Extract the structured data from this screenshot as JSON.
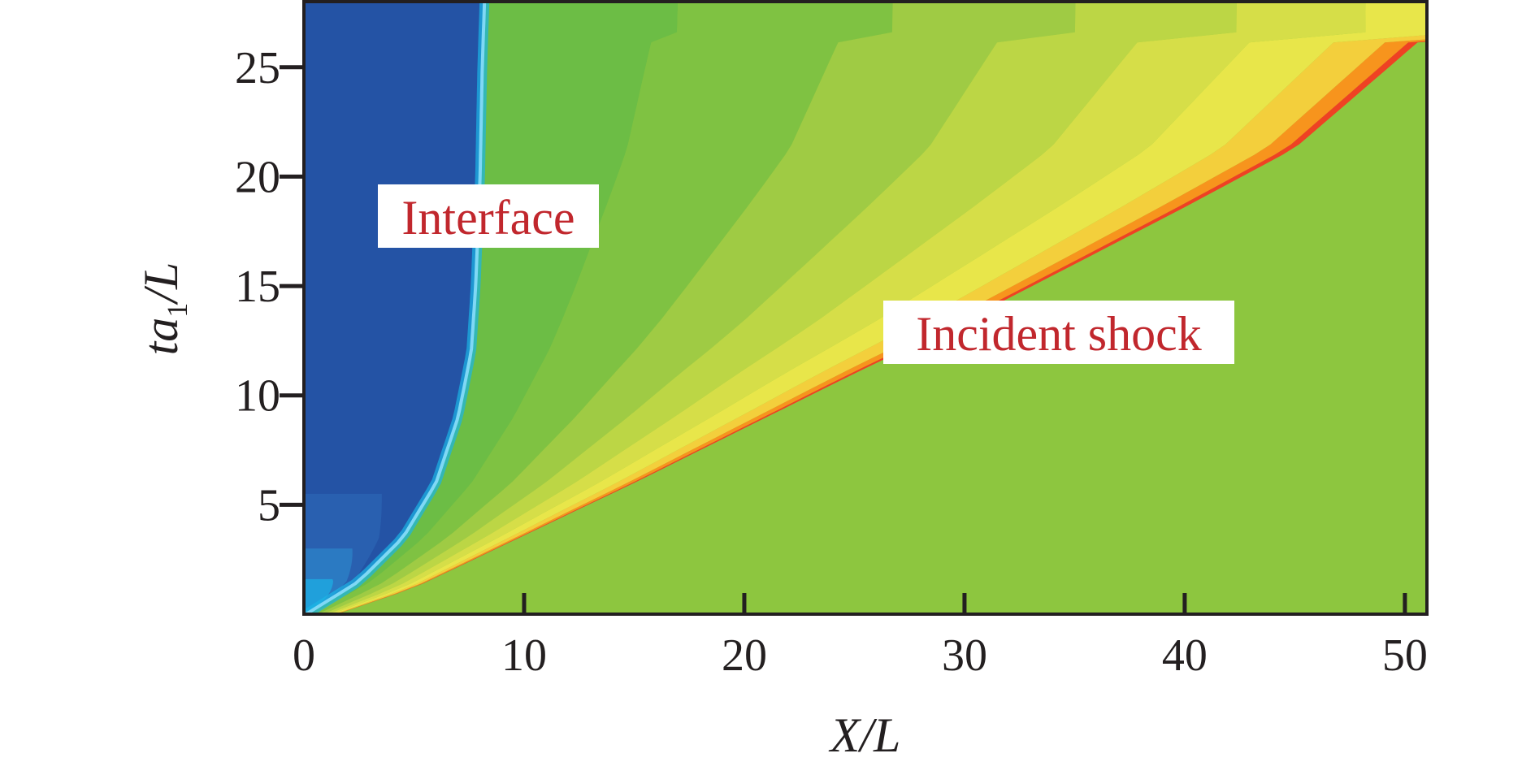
{
  "chart_data": {
    "type": "heatmap",
    "title": "",
    "xlabel": "X/L",
    "ylabel": {
      "main": "ta",
      "sub": "1",
      "tail": "/L"
    },
    "xlim": [
      0,
      51
    ],
    "ylim": [
      0,
      28
    ],
    "xticks": [
      "0",
      "10",
      "20",
      "30",
      "40",
      "50"
    ],
    "xtick_values": [
      0,
      10,
      20,
      30,
      40,
      50
    ],
    "yticks": [
      "5",
      "10",
      "15",
      "20",
      "25"
    ],
    "ytick_values": [
      5,
      10,
      15,
      20,
      25
    ],
    "features": [
      {
        "name": "Interface",
        "x": [
          0.1,
          2.5,
          4.5,
          6.0,
          7.0,
          7.6,
          7.8,
          8.0,
          8.1,
          8.2
        ],
        "y": [
          0,
          1.5,
          3.5,
          6,
          9,
          12,
          15,
          20,
          25,
          28
        ]
      },
      {
        "name": "Incident shock",
        "x": [
          1.5,
          5,
          10,
          15,
          20,
          25,
          30,
          35,
          40,
          45,
          51
        ],
        "y": [
          0,
          1.2,
          3.6,
          6,
          8.5,
          11,
          13.4,
          16,
          18.6,
          21.3,
          26.5
        ]
      }
    ],
    "annotations": [
      {
        "text": "Interface",
        "x": 8.3,
        "y": 18.3
      },
      {
        "text": "Incident shock",
        "x": 34.4,
        "y": 13
      }
    ],
    "colors": {
      "driver_gas": "#2453a5",
      "interface_edge": "#1bb5e6",
      "near_interface": "#6cbd45",
      "ambient": "#8dc63f",
      "fan_mid": "#bcd645",
      "fan_peak": "#e8e64a",
      "shock_core": "#f7941d",
      "shock_front": "#ef4123",
      "annotation_text": "#c1272d"
    }
  }
}
